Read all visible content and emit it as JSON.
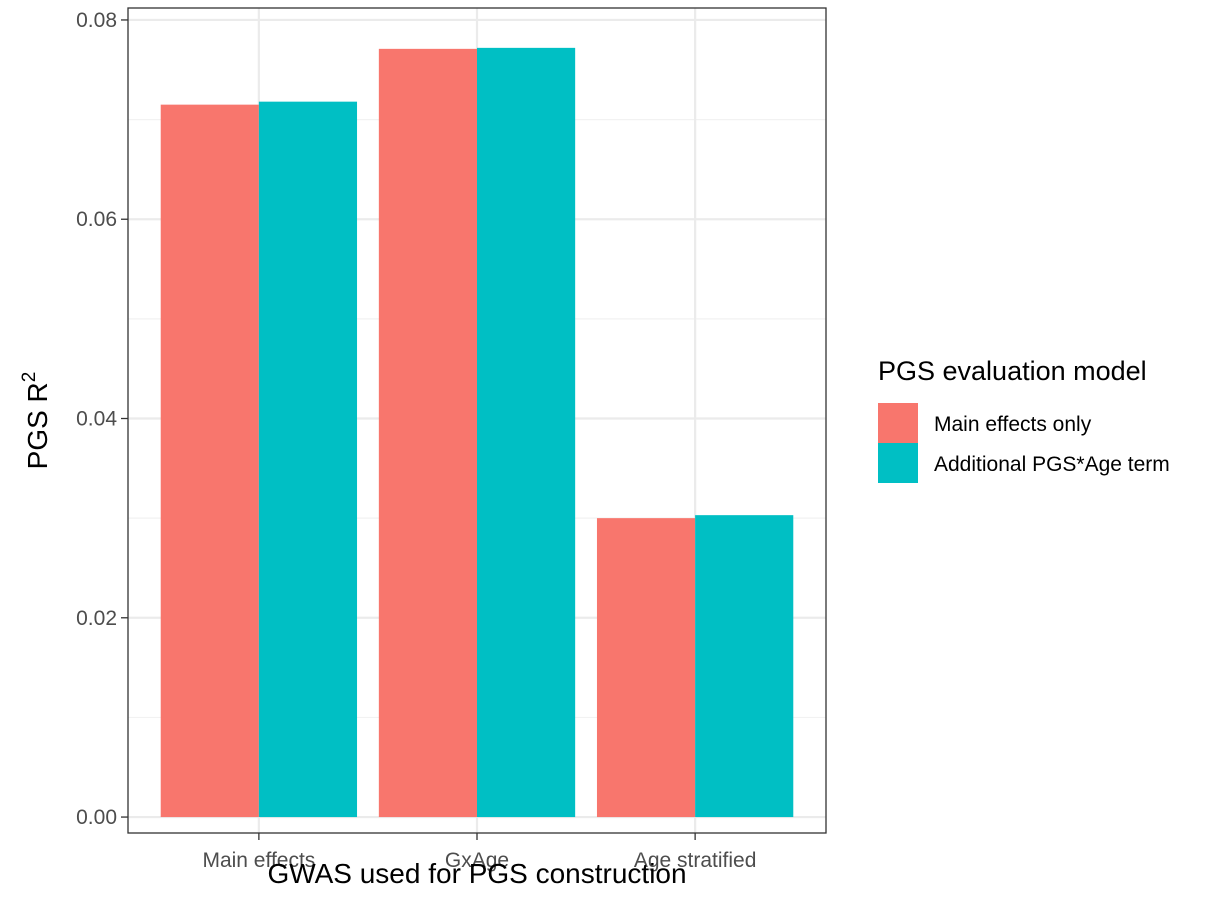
{
  "chart_data": {
    "type": "bar",
    "xlabel": "GWAS used for PGS construction",
    "ylabel": "PGS R",
    "ylabel_superscript": "2",
    "categories": [
      "Main effects",
      "GxAge",
      "Age stratified"
    ],
    "series": [
      {
        "name": "Main effects only",
        "values": [
          0.0715,
          0.0771,
          0.03
        ],
        "color": "#F8766D"
      },
      {
        "name": "Additional PGS*Age term",
        "values": [
          0.0718,
          0.0772,
          0.0303
        ],
        "color": "#00BFC4"
      }
    ],
    "ylim": [
      -0.0016,
      0.0812
    ],
    "yticks": [
      0,
      0.02,
      0.04,
      0.06,
      0.08
    ],
    "ytick_labels": [
      "0.00",
      "0.02",
      "0.04",
      "0.06",
      "0.08"
    ],
    "grid": true,
    "legend": {
      "title": "PGS evaluation model",
      "position": "right"
    }
  }
}
